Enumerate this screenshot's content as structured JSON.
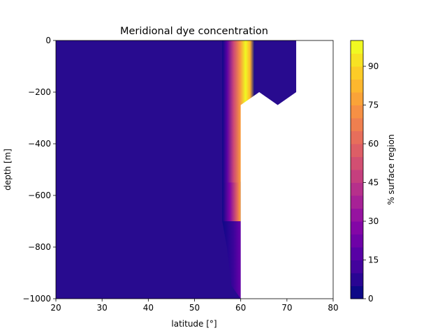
{
  "chart_data": {
    "type": "heatmap",
    "title": "Meridional dye concentration",
    "xlabel": "latitude [°]",
    "ylabel": "depth [m]",
    "xlim": [
      20,
      80
    ],
    "ylim": [
      -1000,
      0
    ],
    "xticks": [
      20,
      30,
      40,
      50,
      60,
      70,
      80
    ],
    "yticks": [
      0,
      -200,
      -400,
      -600,
      -800,
      -1000
    ],
    "colorbar": {
      "label": "% surface region",
      "colormap": "plasma",
      "range": [
        0,
        100
      ],
      "ticks": [
        0,
        15,
        30,
        45,
        60,
        75,
        90
      ],
      "levels": 20
    },
    "land_mask": {
      "description_values": "white region: no data",
      "polygon": [
        [
          60,
          -1000
        ],
        [
          60,
          -250
        ],
        [
          64,
          -200
        ],
        [
          68,
          -250
        ],
        [
          72,
          -200
        ],
        [
          72,
          0
        ],
        [
          80,
          0
        ],
        [
          80,
          -1000
        ]
      ]
    },
    "dye_band": {
      "peak_latitude": 60,
      "peak_value": 100,
      "top_region_lat_span": [
        56,
        63
      ],
      "notes": "high concentration near 60° from surface to about -550 m, fading with depth"
    }
  }
}
